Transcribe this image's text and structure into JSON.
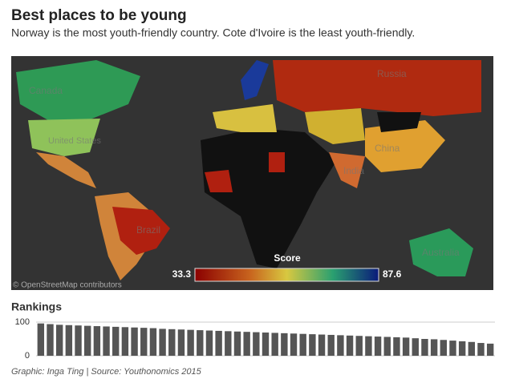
{
  "header": {
    "title": "Best places to be young",
    "subtitle": "Norway is the most youth-friendly country. Cote d'Ivoire is the least youth-friendly."
  },
  "map": {
    "labels": [
      "Russia",
      "Canada",
      "United States",
      "China",
      "India",
      "Brazil",
      "Australia"
    ],
    "attribution": "© OpenStreetMap contributors",
    "legend": {
      "title": "Score",
      "min": 33.3,
      "max": 87.6
    }
  },
  "chart_data": {
    "type": "bar",
    "title": "Rankings",
    "color": "#555555",
    "categories": [
      null,
      null,
      null,
      null,
      null,
      null,
      null,
      null,
      null,
      null,
      null,
      null,
      null,
      null,
      null,
      null,
      null,
      null,
      null,
      null,
      null,
      null,
      null,
      null,
      null,
      null,
      null,
      null,
      null,
      null,
      null,
      null,
      null,
      null,
      null,
      null,
      null,
      null,
      null,
      null,
      null,
      null,
      null,
      null,
      null,
      null,
      null,
      null,
      null
    ],
    "values": [
      96,
      94,
      92,
      91,
      90,
      89,
      88,
      87,
      86,
      85,
      84,
      83,
      82,
      80,
      79,
      78,
      77,
      76,
      75,
      74,
      73,
      72,
      71,
      70,
      69,
      68,
      67,
      66,
      65,
      64,
      63,
      62,
      61,
      60,
      59,
      58,
      57,
      56,
      55,
      54,
      52,
      50,
      49,
      47,
      45,
      43,
      41,
      38,
      36
    ],
    "ylim": [
      0,
      100
    ],
    "yticks": [
      0,
      100
    ],
    "grid": true
  },
  "footer": "Graphic: Inga Ting | Source: Youthonomics 2015"
}
